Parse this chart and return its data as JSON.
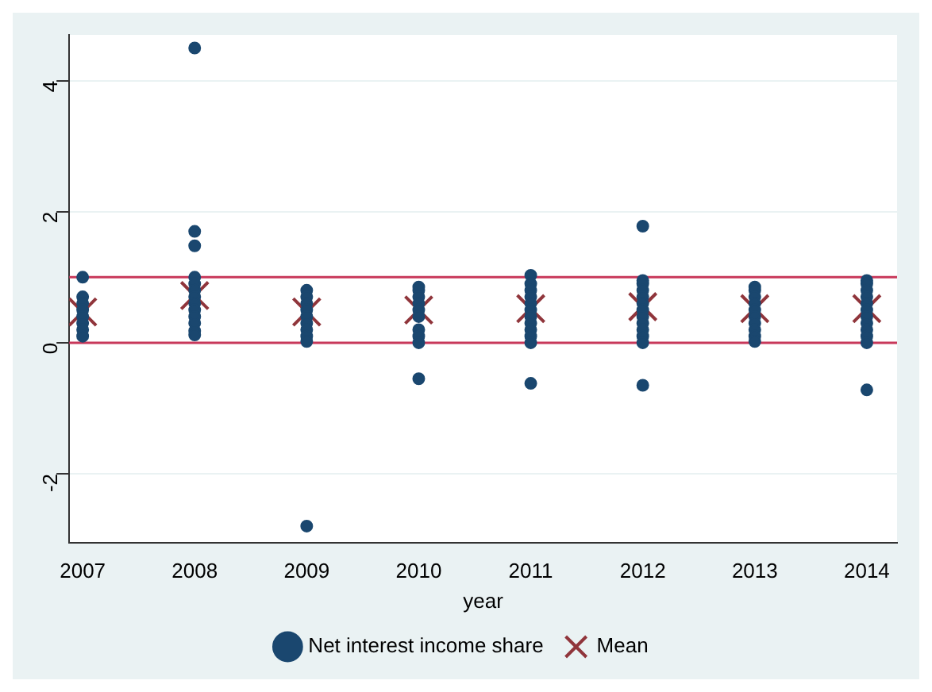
{
  "chart_data": {
    "type": "scatter",
    "xlabel": "year",
    "xlim": [
      2006.88,
      2014.27
    ],
    "xticks": [
      2007,
      2008,
      2009,
      2010,
      2011,
      2012,
      2013,
      2014
    ],
    "ylim": [
      -3.05,
      4.7
    ],
    "yticks": [
      -2,
      0,
      2,
      4
    ],
    "grid": "y",
    "legend": "bottom",
    "series": [
      {
        "name": "Net interest income share",
        "color": "#1a476f",
        "marker": "circle",
        "x": [
          2007,
          2007,
          2007,
          2007,
          2007,
          2007,
          2007,
          2007,
          2008,
          2008,
          2008,
          2008,
          2008,
          2008,
          2008,
          2008,
          2008,
          2008,
          2008,
          2008,
          2008,
          2009,
          2009,
          2009,
          2009,
          2009,
          2009,
          2009,
          2009,
          2009,
          2009,
          2010,
          2010,
          2010,
          2010,
          2010,
          2010,
          2010,
          2010,
          2010,
          2010,
          2011,
          2011,
          2011,
          2011,
          2011,
          2011,
          2011,
          2011,
          2011,
          2011,
          2011,
          2011,
          2012,
          2012,
          2012,
          2012,
          2012,
          2012,
          2012,
          2012,
          2012,
          2012,
          2012,
          2012,
          2012,
          2013,
          2013,
          2013,
          2013,
          2013,
          2013,
          2013,
          2013,
          2013,
          2013,
          2014,
          2014,
          2014,
          2014,
          2014,
          2014,
          2014,
          2014,
          2014,
          2014,
          2014,
          2014
        ],
        "values": [
          1.0,
          0.7,
          0.6,
          0.5,
          0.4,
          0.3,
          0.2,
          0.1,
          4.5,
          1.7,
          1.48,
          1.0,
          0.9,
          0.8,
          0.7,
          0.6,
          0.5,
          0.4,
          0.3,
          0.18,
          0.12,
          0.8,
          0.7,
          0.6,
          0.5,
          0.4,
          0.3,
          0.2,
          0.1,
          0.02,
          -2.8,
          0.85,
          0.8,
          0.7,
          0.6,
          0.5,
          0.4,
          0.2,
          0.1,
          0.0,
          -0.55,
          1.03,
          0.9,
          0.8,
          0.7,
          0.6,
          0.5,
          0.4,
          0.3,
          0.2,
          0.1,
          0.0,
          -0.62,
          1.78,
          0.95,
          0.9,
          0.8,
          0.7,
          0.6,
          0.5,
          0.4,
          0.3,
          0.2,
          0.1,
          0.0,
          -0.65,
          0.85,
          0.8,
          0.7,
          0.6,
          0.5,
          0.4,
          0.3,
          0.2,
          0.1,
          0.02,
          0.95,
          0.9,
          0.8,
          0.7,
          0.6,
          0.5,
          0.4,
          0.3,
          0.2,
          0.1,
          0.0,
          -0.72
        ]
      },
      {
        "name": "Mean",
        "color": "#90353b",
        "marker": "cross",
        "x": [
          2007,
          2008,
          2009,
          2010,
          2011,
          2012,
          2013,
          2014
        ],
        "values": [
          0.47,
          0.72,
          0.47,
          0.5,
          0.52,
          0.55,
          0.52,
          0.52
        ]
      }
    ],
    "ref_lines": [
      {
        "axis": "y",
        "value": 0,
        "color": "#c8385a"
      },
      {
        "axis": "y",
        "value": 1,
        "color": "#c8385a"
      }
    ]
  }
}
